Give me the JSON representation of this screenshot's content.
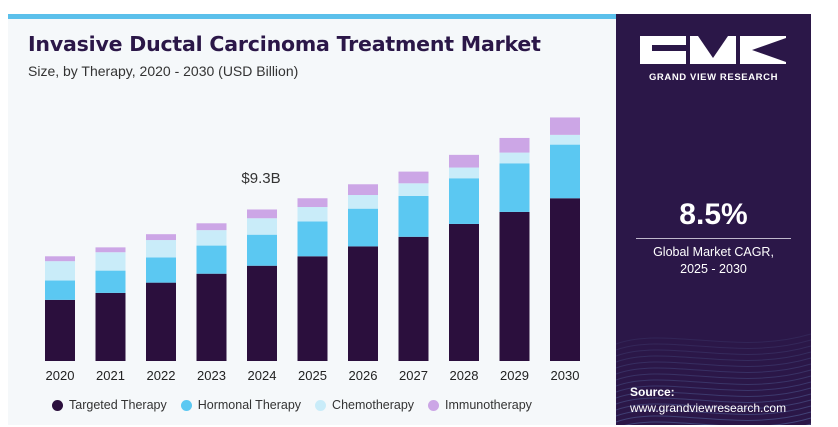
{
  "header": {
    "title": "Invasive Ductal Carcinoma Treatment Market",
    "subtitle": "Size, by Therapy, 2020 - 2030 (USD Billion)"
  },
  "sidebar": {
    "logo_text": "GRAND VIEW RESEARCH",
    "cagr_value": "8.5%",
    "cagr_label_line1": "Global Market CAGR,",
    "cagr_label_line2": "2025 - 2030",
    "source_label": "Source:",
    "source_url": "www.grandviewresearch.com"
  },
  "colors": {
    "targeted": "#2b0f3d",
    "hormonal": "#5bc8f2",
    "chemo": "#c9ecf9",
    "immuno": "#cca6e6",
    "sidebar_bg": "#2b1748",
    "accent": "#5bc0eb"
  },
  "chart_data": {
    "type": "bar",
    "stacked": true,
    "categories": [
      "2020",
      "2021",
      "2022",
      "2023",
      "2024",
      "2025",
      "2026",
      "2027",
      "2028",
      "2029",
      "2030"
    ],
    "series": [
      {
        "name": "Targeted Therapy",
        "values": [
          3.76,
          4.19,
          4.82,
          5.37,
          5.86,
          6.44,
          7.05,
          7.64,
          8.43,
          9.17,
          10.01
        ]
      },
      {
        "name": "Hormonal Therapy",
        "values": [
          1.19,
          1.37,
          1.55,
          1.73,
          1.91,
          2.14,
          2.32,
          2.51,
          2.81,
          2.99,
          3.3
        ]
      },
      {
        "name": "Chemotherapy",
        "values": [
          1.19,
          1.13,
          1.07,
          0.95,
          1.01,
          0.89,
          0.84,
          0.78,
          0.66,
          0.66,
          0.6
        ]
      },
      {
        "name": "Immunotherapy",
        "values": [
          0.3,
          0.3,
          0.36,
          0.42,
          0.54,
          0.54,
          0.66,
          0.72,
          0.78,
          0.9,
          1.07
        ]
      }
    ],
    "annotations": [
      {
        "category": "2024",
        "text": "$9.3B"
      }
    ],
    "ylim": [
      0,
      16.3
    ],
    "legend_position": "bottom",
    "grid": false
  }
}
